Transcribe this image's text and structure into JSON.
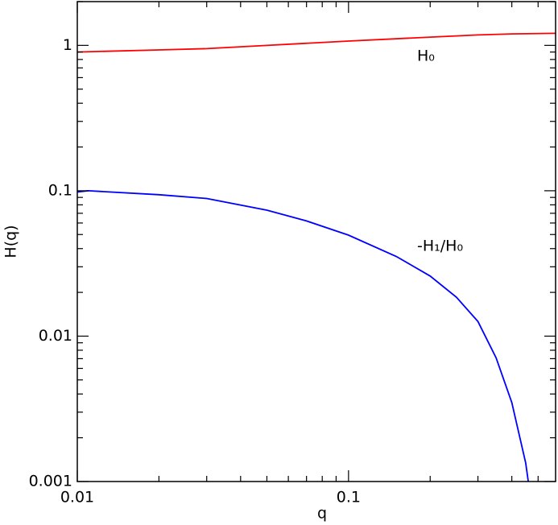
{
  "chart_data": {
    "type": "line",
    "xlabel": "q",
    "ylabel": "H(q)",
    "xscale": "log",
    "yscale": "log",
    "xlim": [
      0.01,
      0.58
    ],
    "ylim": [
      0.001,
      2
    ],
    "xticks": [
      0.01,
      0.1
    ],
    "yticks": [
      0.001,
      0.01,
      0.1,
      1
    ],
    "xminorticks": [
      0.02,
      0.03,
      0.04,
      0.05,
      0.06,
      0.07,
      0.08,
      0.09,
      0.2,
      0.3,
      0.4,
      0.5
    ],
    "yminorticks": [
      0.002,
      0.003,
      0.004,
      0.005,
      0.006,
      0.007,
      0.008,
      0.009,
      0.02,
      0.03,
      0.04,
      0.05,
      0.06,
      0.07,
      0.08,
      0.09,
      0.2,
      0.3,
      0.4,
      0.5,
      0.6,
      0.7,
      0.8,
      0.9,
      2
    ],
    "series": [
      {
        "name": "H₀",
        "color": "#ff0000",
        "x": [
          0.01,
          0.02,
          0.03,
          0.05,
          0.1,
          0.2,
          0.3,
          0.4,
          0.58
        ],
        "values": [
          0.9,
          0.93,
          0.95,
          1.0,
          1.07,
          1.14,
          1.18,
          1.2,
          1.21
        ]
      },
      {
        "name": "-H₁/H₀",
        "color": "#0000ff",
        "x": [
          0.01,
          0.011,
          0.02,
          0.03,
          0.05,
          0.07,
          0.1,
          0.15,
          0.2,
          0.25,
          0.3,
          0.35,
          0.4,
          0.45,
          0.46
        ],
        "values": [
          0.098,
          0.1,
          0.094,
          0.0885,
          0.0735,
          0.062,
          0.0495,
          0.0353,
          0.0259,
          0.0185,
          0.0126,
          0.0071,
          0.0035,
          0.00134,
          0.001
        ]
      }
    ]
  }
}
